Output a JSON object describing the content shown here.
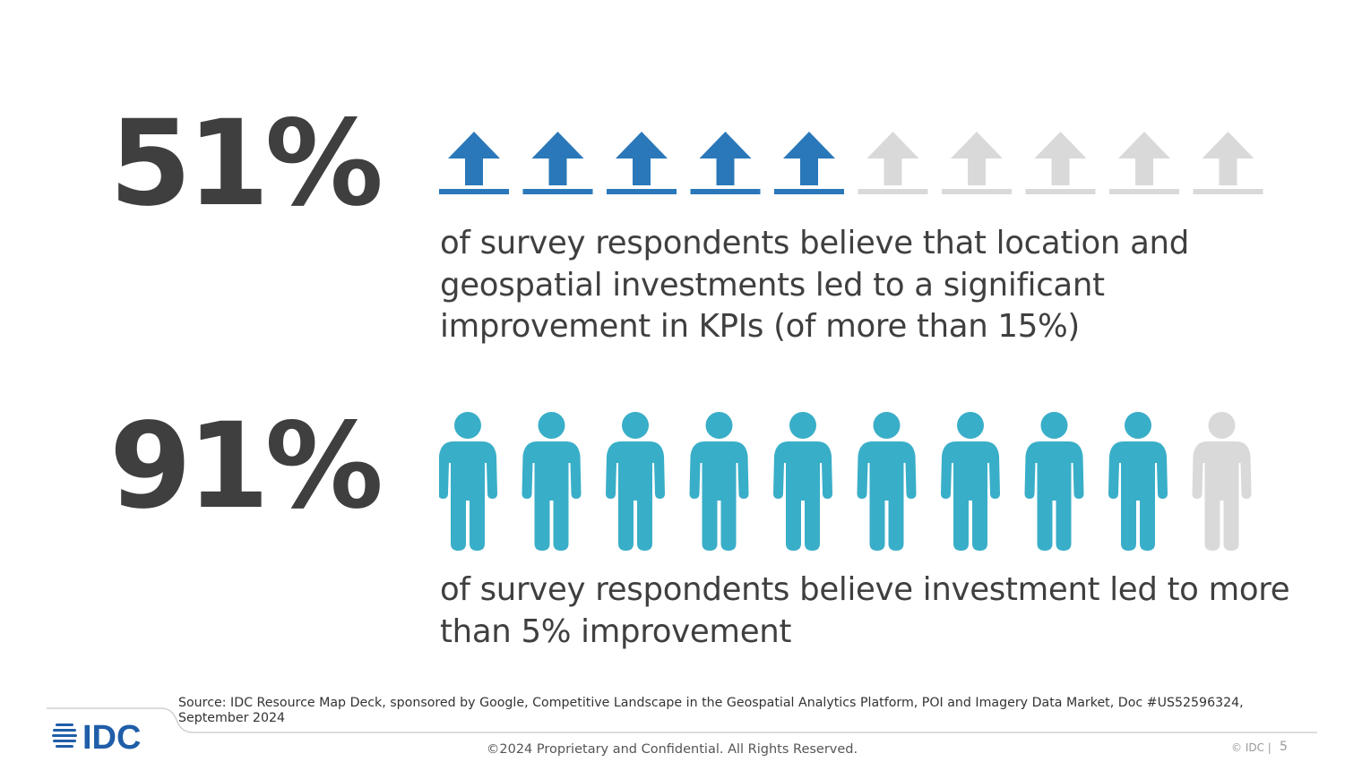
{
  "stats": [
    {
      "value": "51%",
      "description": "of survey respondents believe that location and geospatial investments led to a significant improvement in KPIs (of more than 15%)",
      "icon": "up-arrow-icon",
      "total": 10,
      "filled": 5,
      "fill_color": "#2a78b9",
      "empty_color": "#d9d9d9"
    },
    {
      "value": "91%",
      "description": "of survey respondents believe investment led to more than 5% improvement",
      "icon": "person-icon",
      "total": 10,
      "filled": 9,
      "fill_color": "#39aec8",
      "empty_color": "#d9d9d9"
    }
  ],
  "source": "Source: IDC Resource Map Deck, sponsored by Google, Competitive Landscape in the Geospatial Analytics Platform, POI and Imagery Data Market, Doc #US52596324, September 2024",
  "footer": {
    "logo_text": "IDC",
    "copyright": "©2024 Proprietary and Confidential. All Rights Reserved.",
    "brand": "© IDC |",
    "page_number": "5"
  },
  "colors": {
    "logo": "#1f5ea8",
    "divider": "#d0d0d0"
  }
}
